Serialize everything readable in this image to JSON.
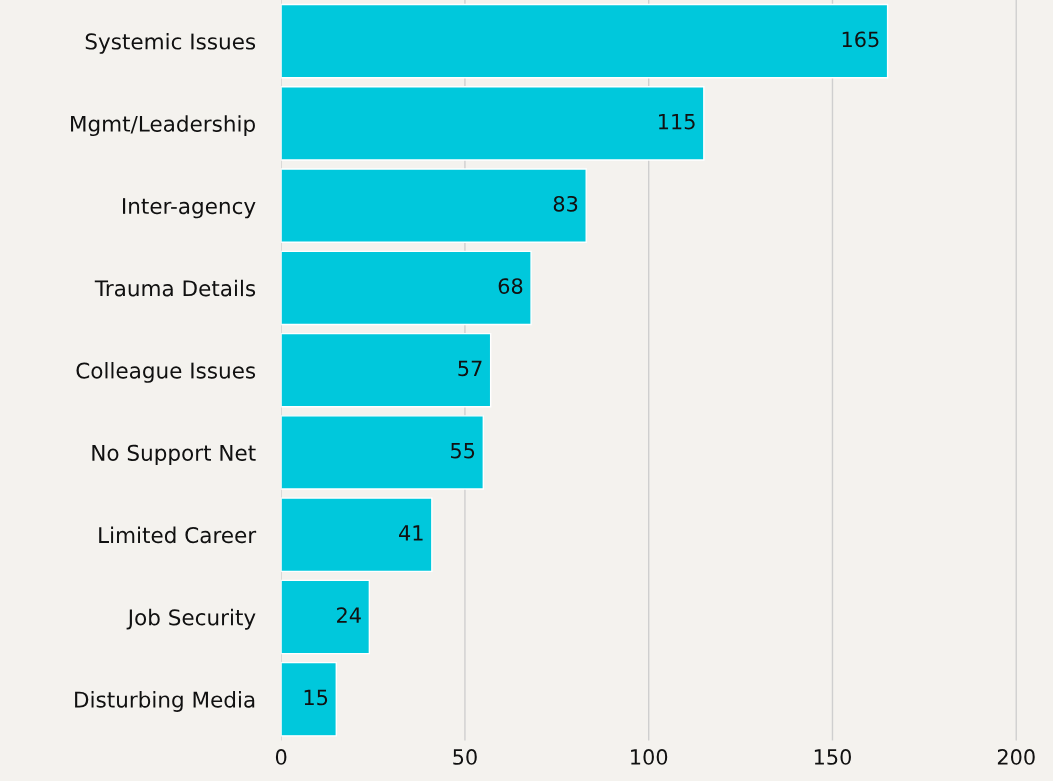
{
  "chart_data": {
    "type": "bar",
    "orientation": "horizontal",
    "categories": [
      "Systemic Issues",
      "Mgmt/Leadership",
      "Inter-agency",
      "Trauma Details",
      "Colleague Issues",
      "No Support Net",
      "Limited Career",
      "Job Security",
      "Disturbing Media"
    ],
    "values": [
      165,
      115,
      83,
      68,
      57,
      55,
      41,
      24,
      15
    ],
    "color": "#00c8dc",
    "xlim": [
      0,
      210
    ],
    "xticks": [
      0,
      50,
      100,
      150,
      200
    ],
    "grid": "x",
    "data_labels": true
  }
}
